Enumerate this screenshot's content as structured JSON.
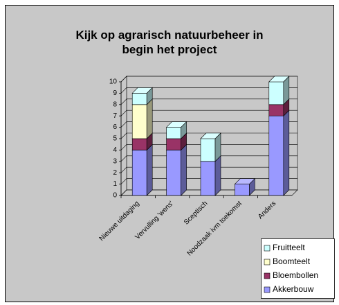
{
  "chart_data": {
    "type": "bar3d_stacked",
    "title": "Kijk op agrarisch natuurbeheer in begin het project",
    "categories": [
      "Nieuwe uitdaging",
      "Vervulling 'wens'",
      "Sceptisch",
      "Noodzaak ivm toekomst",
      "Anders"
    ],
    "series": [
      {
        "name": "Akkerbouw",
        "color": "#9999ff",
        "values": [
          4,
          4,
          3,
          1,
          7
        ]
      },
      {
        "name": "Bloembollen",
        "color": "#993366",
        "values": [
          1,
          1,
          0,
          0,
          1
        ]
      },
      {
        "name": "Boomteelt",
        "color": "#ffffcc",
        "values": [
          3,
          0,
          0,
          0,
          0
        ]
      },
      {
        "name": "Fruitteelt",
        "color": "#ccffff",
        "values": [
          1,
          1,
          2,
          0,
          2
        ]
      }
    ],
    "ylim": [
      0,
      10
    ],
    "yticks": [
      0,
      1,
      2,
      3,
      4,
      5,
      6,
      7,
      8,
      9,
      10
    ],
    "grid": true,
    "legend": "bottom-right"
  }
}
